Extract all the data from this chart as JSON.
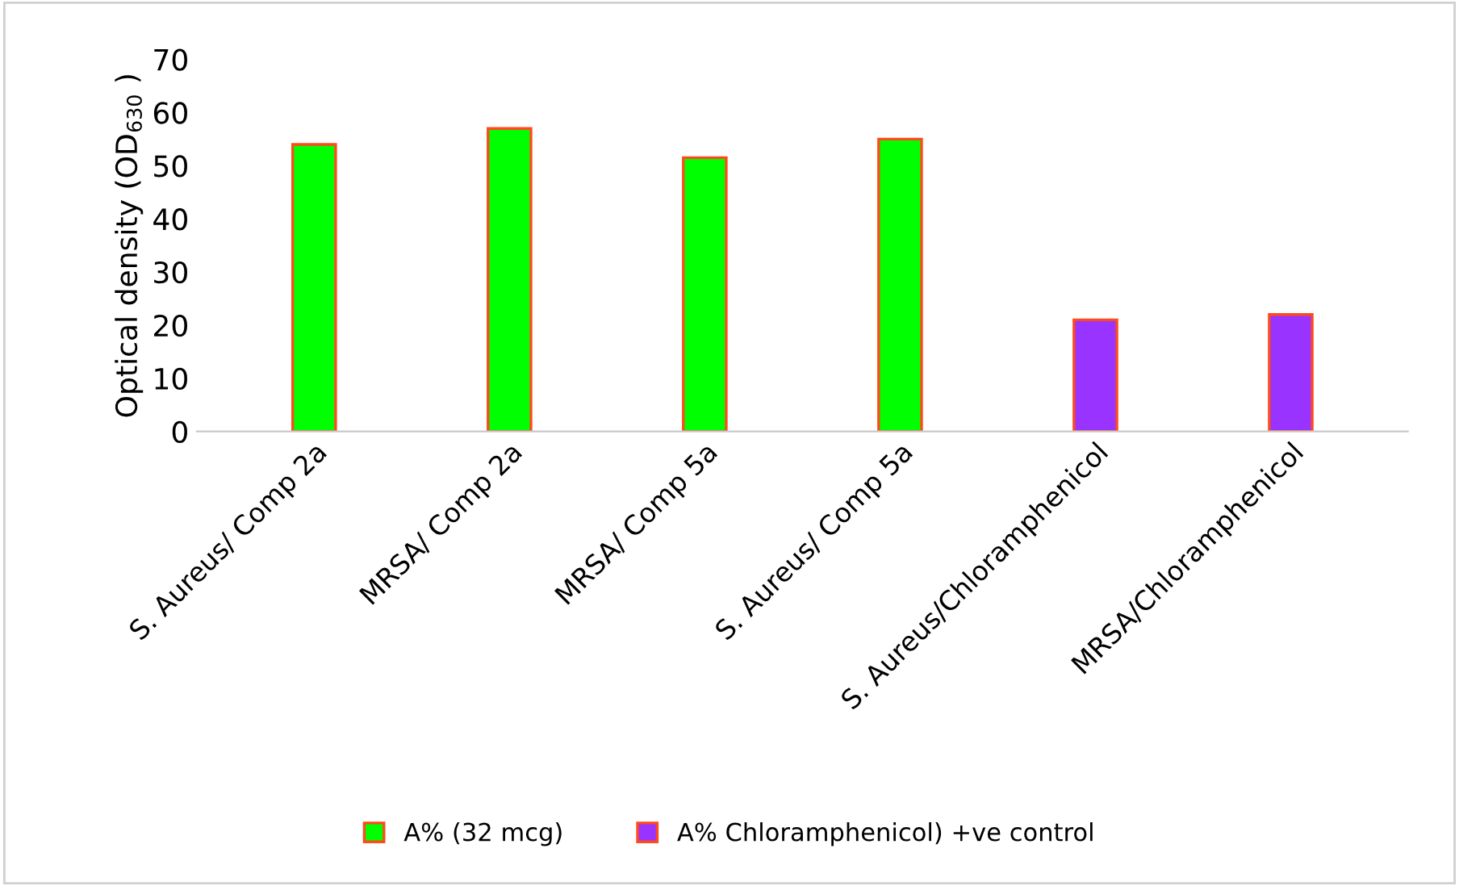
{
  "chart_data": {
    "type": "bar",
    "ylabel": "Optical density (OD$_{630}$ )",
    "categories": [
      "S. Aureus/ Comp 2a",
      "MRSA/ Comp 2a",
      "MRSA/ Comp 5a",
      "S. Aureus/ Comp 5a",
      "S. Aureus/Chloramphenicol",
      "MRSA/Chloramphenicol"
    ],
    "series": [
      {
        "name": "A% (32 mcg)",
        "color": "#00ff00",
        "values": [
          54,
          57,
          51.5,
          55,
          null,
          null
        ]
      },
      {
        "name": "A% Chloramphenicol) +ve control",
        "color": "#9933ff",
        "values": [
          null,
          null,
          null,
          null,
          21,
          22
        ]
      }
    ],
    "ylim": [
      0,
      70
    ],
    "yticks": [
      0,
      10,
      20,
      30,
      40,
      50,
      60,
      70
    ],
    "grid": false,
    "legend": "bottom"
  }
}
